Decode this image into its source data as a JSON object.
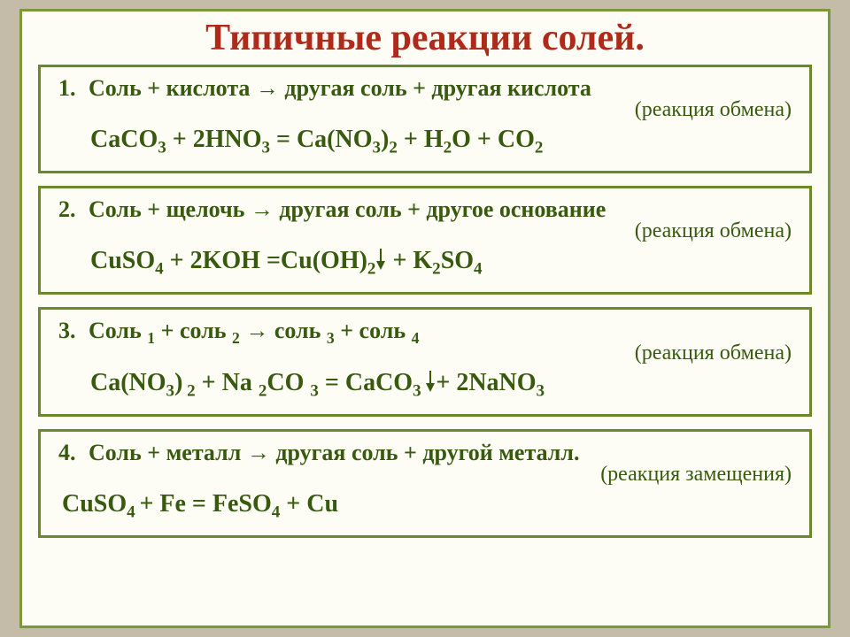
{
  "title": "Типичные реакции  солей.",
  "colors": {
    "page_bg": "#fdfdf6",
    "outer_bg": "#c4bca8",
    "border": "#6a8a2a",
    "text": "#385a0f",
    "title": "#b02a1a"
  },
  "boxes": [
    {
      "num": "1.",
      "heading": "Соль + кислота → другая соль + другая кислота",
      "type": "(реакция обмена)",
      "equation_html": "CaCO<sub>3</sub> + 2HNO<sub>3</sub>  = Ca(NO<sub>3</sub>)<sub>2</sub>   + H<sub>2</sub>O + CO<sub>2</sub>"
    },
    {
      "num": "2.",
      "heading": "Соль + щелочь → другая соль + другое основание",
      "type": "(реакция обмена)",
      "equation_html": "CuSO<sub>4</sub> + 2KOH  =Cu(OH)<sub>2</sub><span class=\"arrow-down\" data-name=\"precipitate-arrow\" data-interactable=\"false\"></span>    + K<sub>2</sub>SO<sub>4</sub>"
    },
    {
      "num": "3.",
      "heading": "Соль <sub>1</sub> + соль <sub>2</sub> → соль <sub>3</sub>  +  соль <sub>4</sub>",
      "type": "(реакция обмена)",
      "equation_html": "Ca(NO<sub>3</sub>)<sub> 2</sub> + Na <sub>2</sub>CO <sub>3</sub>  = CaCO<sub>3 </sub> <span class=\"arrow-down\" data-name=\"precipitate-arrow\" data-interactable=\"false\"></span>+ 2NaNO<sub>3</sub>"
    },
    {
      "num": "4.",
      "heading": "Соль + металл → другая соль + другой металл.",
      "type": "(реакция замещения)",
      "equation_html": "CuSO<sub>4 </sub> + Fe = FeSO<sub>4</sub> + Cu",
      "eq_indent": 0
    }
  ]
}
